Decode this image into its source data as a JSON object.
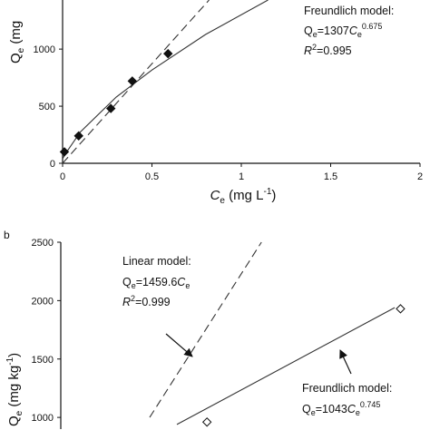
{
  "chart_data": [
    {
      "type": "scatter",
      "y_label": [
        "Q",
        "e",
        " (mg"
      ],
      "x_label": [
        "C",
        "e",
        " (mg L",
        "-1",
        ")"
      ],
      "xlim": [
        0,
        2
      ],
      "ylim": [
        0,
        1430
      ],
      "xticks": [
        0,
        0.5,
        1,
        1.5,
        2
      ],
      "yticks": [
        0,
        500,
        1000
      ],
      "x": [
        0.01,
        0.09,
        0.27,
        0.39,
        0.59
      ],
      "values": [
        100,
        240,
        480,
        720,
        960
      ],
      "marker_fill": "#111",
      "lines": [
        {
          "style": "dashed",
          "x": [
            0,
            0.82
          ],
          "values": [
            0,
            1430
          ]
        },
        {
          "style": "solid",
          "x": [
            0,
            0.02,
            0.1,
            0.3,
            0.5,
            0.8,
            1.15
          ],
          "values": [
            40,
            93,
            276,
            580,
            817,
            1128,
            1430
          ]
        }
      ],
      "annotation": {
        "title": "Freundlich model:",
        "equation": [
          "Q",
          "e",
          "=1307",
          "C",
          "e",
          "0.675"
        ],
        "r2": [
          "R",
          "2",
          "=0.995"
        ]
      }
    },
    {
      "type": "scatter",
      "panel_label": "b",
      "y_label": [
        "Q",
        "e",
        " (mg kg",
        "-1",
        ")"
      ],
      "xlim": [
        0,
        2.5
      ],
      "ylim": [
        900,
        2500
      ],
      "yticks": [
        1000,
        1500,
        2000,
        2500
      ],
      "x": [
        1.02,
        2.37
      ],
      "values": [
        960,
        1930
      ],
      "marker_fill": "none",
      "lines": [
        {
          "style": "dashed",
          "x": [
            0.62,
            1.4
          ],
          "values": [
            1000,
            2500
          ]
        },
        {
          "style": "solid",
          "x": [
            0.81,
            2.33
          ],
          "values": [
            940,
            1940
          ]
        }
      ],
      "annotations": [
        {
          "title": "Linear model:",
          "equation": [
            "Q",
            "e",
            "=1459.6",
            "C",
            "e"
          ],
          "r2": [
            "R",
            "2",
            "=0.999"
          ]
        },
        {
          "title": "Freundlich model:",
          "equation": [
            "Q",
            "e",
            "=1043",
            "C",
            "e",
            "0.745"
          ]
        }
      ]
    }
  ]
}
